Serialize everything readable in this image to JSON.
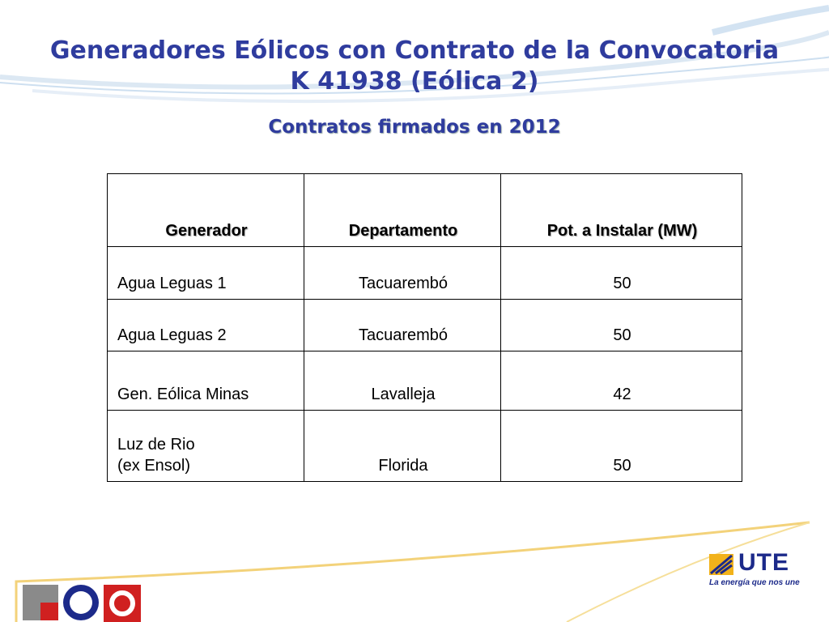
{
  "header": {
    "title": "Generadores Eólicos con Contrato  de la Convocatoria K 41938 (Eólica 2)",
    "subtitle": "Contratos firmados en 2012"
  },
  "table": {
    "columns": [
      "Generador",
      "Departamento",
      "Pot.  a Instalar (MW)"
    ],
    "rows": [
      [
        "Agua Leguas 1",
        "Tacuarembó",
        50
      ],
      [
        "Agua Leguas 2",
        "Tacuarembó",
        50
      ],
      [
        "Gen. Eólica Minas",
        "Lavalleja",
        42
      ],
      [
        "Luz de Rio\n(ex Ensol)",
        "Florida",
        50
      ]
    ]
  },
  "footer": {
    "logo": "UTE",
    "tagline": "La energía que nos une"
  }
}
